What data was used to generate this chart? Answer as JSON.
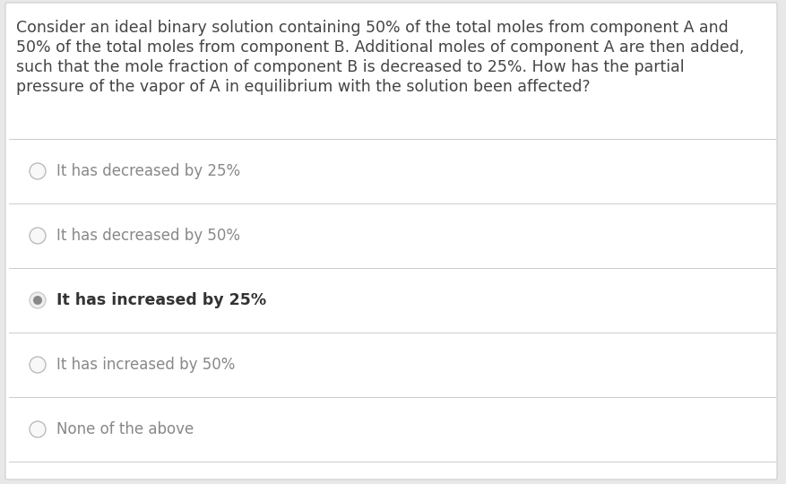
{
  "question_lines": [
    "Consider an ideal binary solution containing 50% of the total moles from component A and",
    "50% of the total moles from component B. Additional moles of component A are then added,",
    "such that the mole fraction of component B is decreased to 25%. How has the partial",
    "pressure of the vapor of A in equilibrium with the solution been affected?"
  ],
  "options": [
    "It has decreased by 25%",
    "It has decreased by 50%",
    "It has increased by 25%",
    "It has increased by 50%",
    "None of the above"
  ],
  "selected_index": 2,
  "bg_color": "#ffffff",
  "outer_bg_color": "#e8e8e8",
  "text_color": "#444444",
  "option_text_color": "#888888",
  "selected_text_color": "#333333",
  "divider_color": "#cccccc",
  "radio_border_color": "#bbbbbb",
  "radio_selected_outer_color": "#cccccc",
  "radio_selected_inner_color": "#888888",
  "question_font_size": 12.5,
  "option_font_size": 12.0,
  "selected_option_font_size": 12.5
}
